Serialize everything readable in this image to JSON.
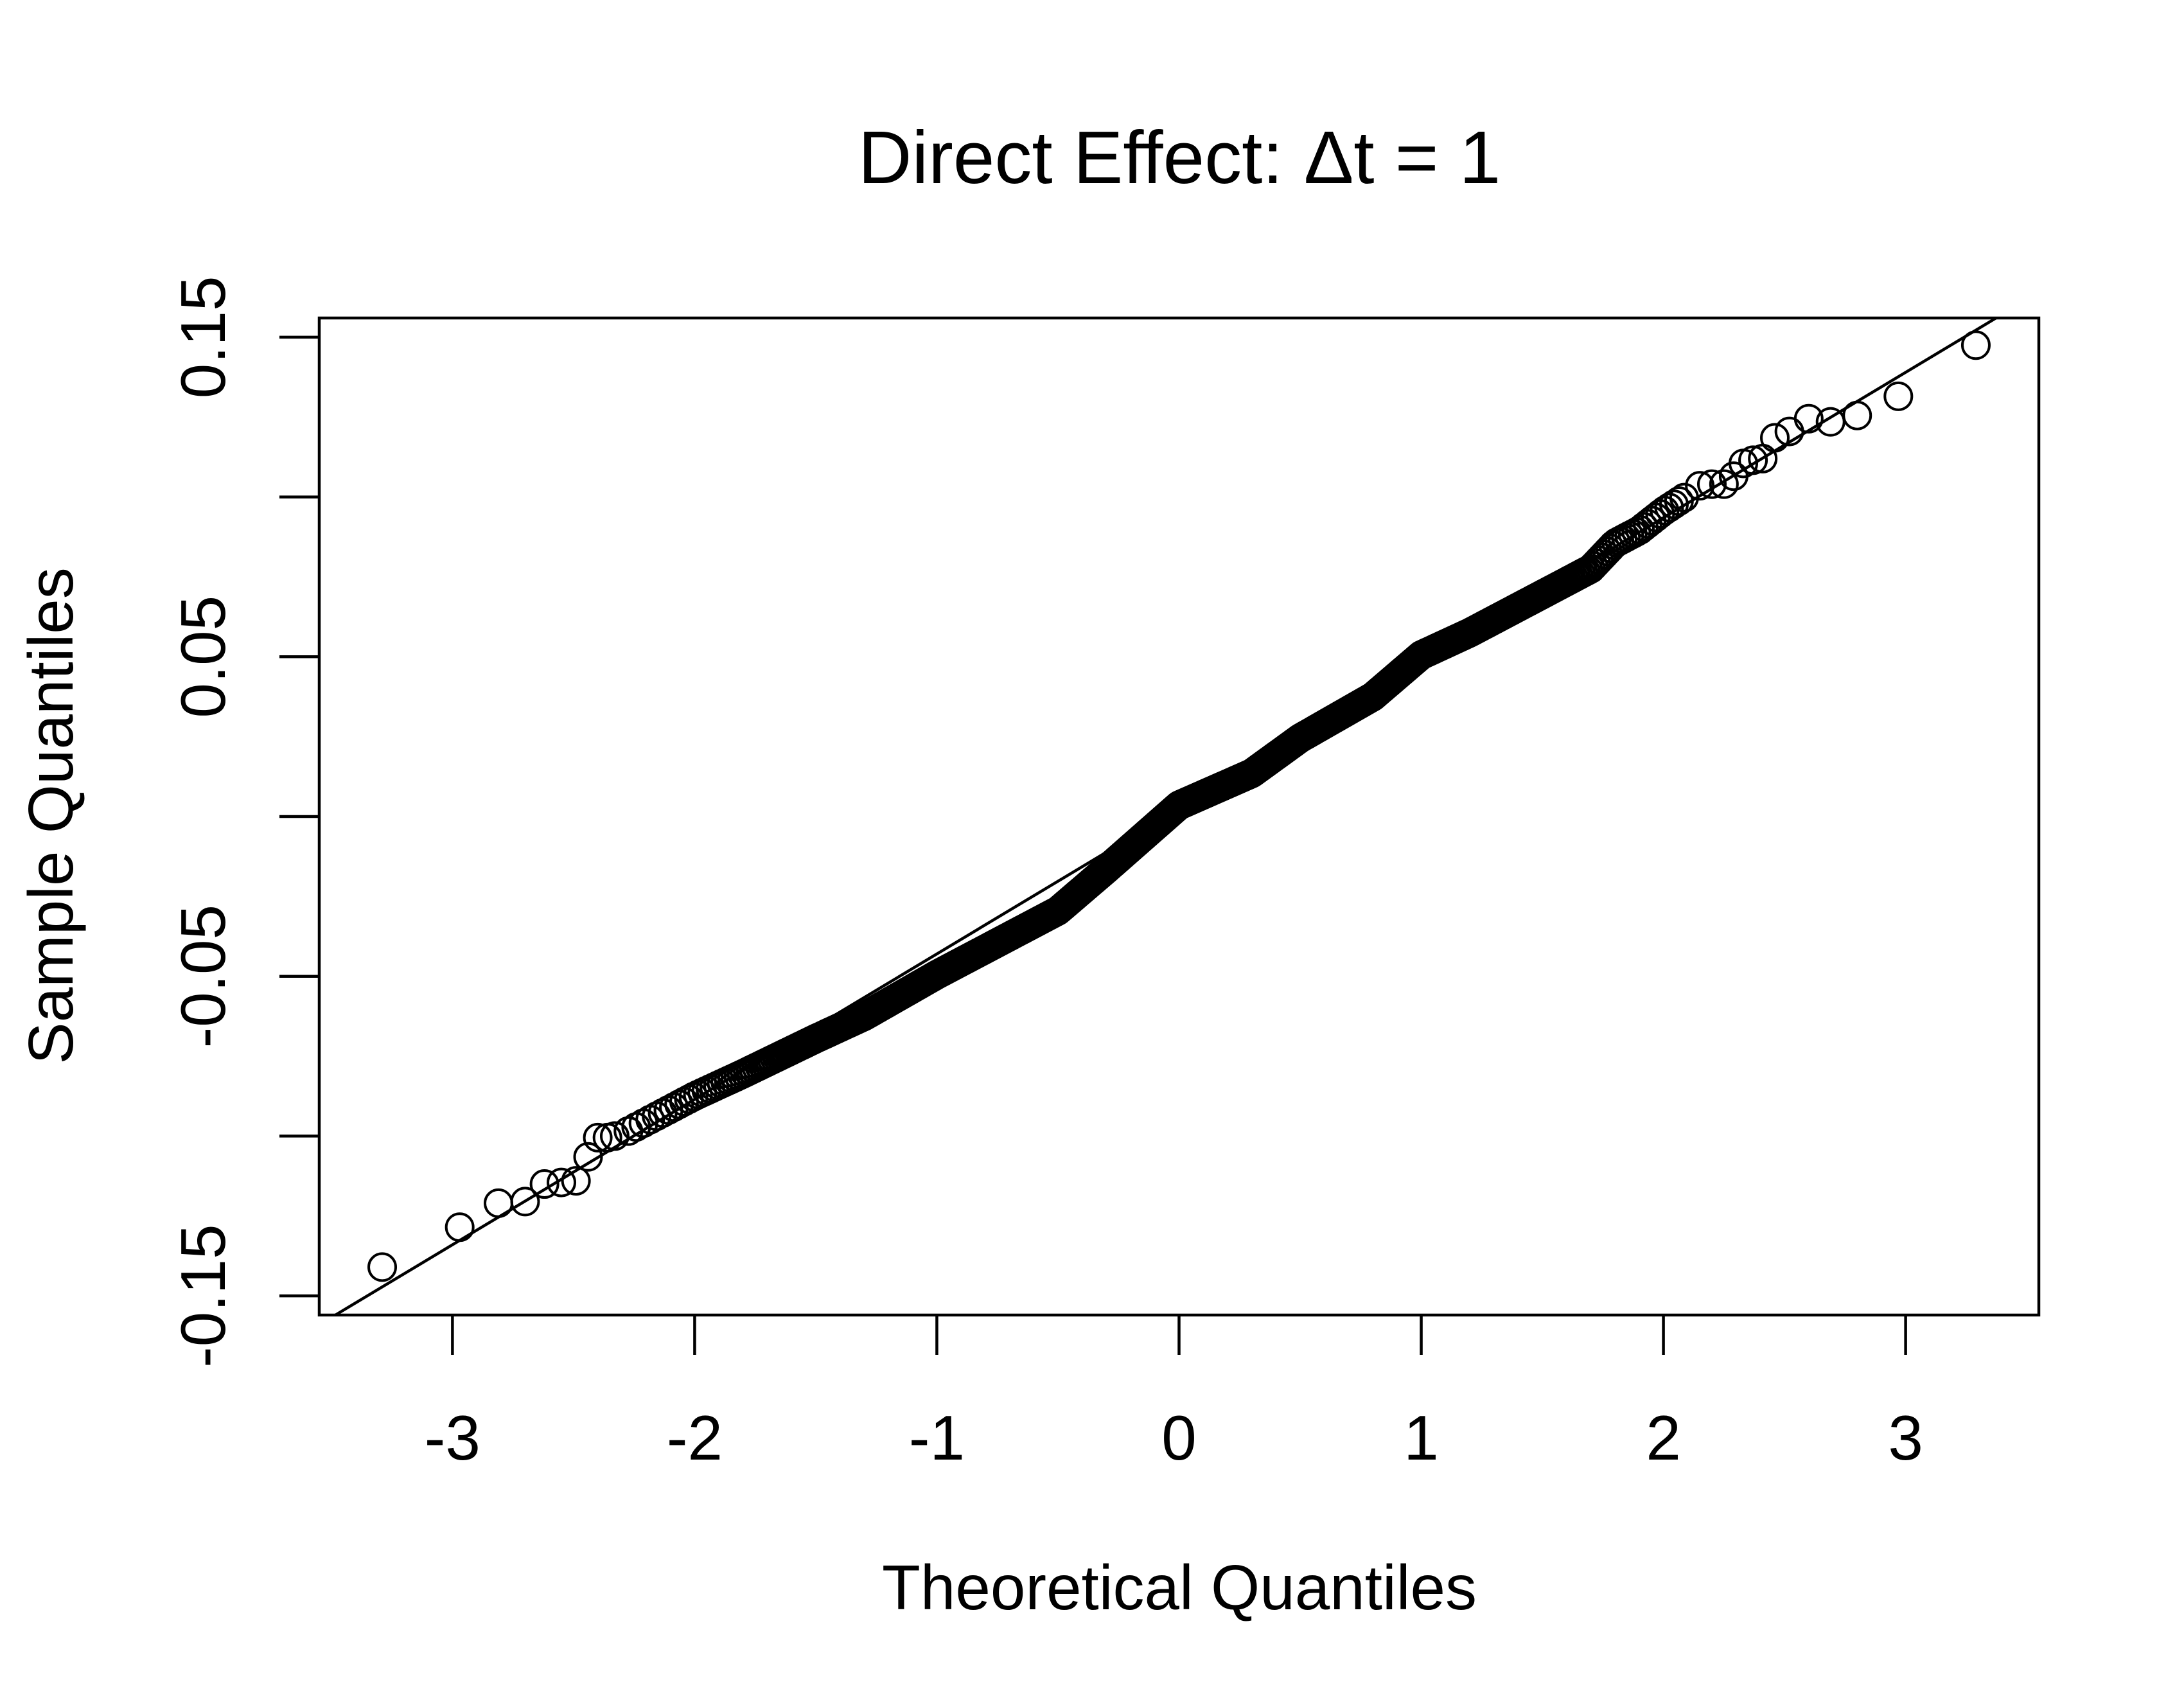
{
  "chart_data": {
    "type": "scatter",
    "subtype": "normal-qq-plot",
    "title": "Direct Effect:  Δt = 1",
    "xlabel": "Theoretical Quantiles",
    "ylabel": "Sample Quantiles",
    "xlim": [
      -3.55,
      3.55
    ],
    "ylim": [
      -0.156,
      0.156
    ],
    "x_ticks": [
      -3,
      -2,
      -1,
      0,
      1,
      2,
      3
    ],
    "x_tick_labels": [
      "-3",
      "-2",
      "-1",
      "0",
      "1",
      "2",
      "3"
    ],
    "y_ticks": [
      -0.15,
      -0.1,
      -0.05,
      0,
      0.05,
      0.1,
      0.15
    ],
    "y_tick_labels": [
      "-0.15",
      "",
      "-0.05",
      "",
      "0.05",
      "",
      "0.15"
    ],
    "grid": false,
    "legend": "none",
    "reference_line": {
      "intercept": 0.0025,
      "slope": 0.0455
    },
    "n_points": 1000,
    "central_curve_knots": {
      "x": [
        -2.3,
        -2.1,
        -2.0,
        -1.8,
        -1.5,
        -1.3,
        -1.0,
        -0.8,
        -0.5,
        -0.3,
        0.0,
        0.3,
        0.5,
        0.8,
        1.0,
        1.2,
        1.5,
        1.7,
        1.8,
        1.9,
        2.0,
        2.1
      ],
      "y": [
        -0.0995,
        -0.0915,
        -0.0875,
        -0.0805,
        -0.0695,
        -0.0625,
        -0.0495,
        -0.0415,
        -0.0295,
        -0.0165,
        0.0035,
        0.0135,
        0.0245,
        0.0375,
        0.0505,
        0.0575,
        0.0695,
        0.0775,
        0.0855,
        0.0895,
        0.0955,
        0.1005
      ]
    },
    "tail_points": [
      {
        "x": -3.29,
        "y": -0.141
      },
      {
        "x": -2.97,
        "y": -0.1285
      },
      {
        "x": -2.81,
        "y": -0.121
      },
      {
        "x": -2.7,
        "y": -0.1205
      },
      {
        "x": -2.62,
        "y": -0.115
      },
      {
        "x": -2.55,
        "y": -0.1145
      },
      {
        "x": -2.49,
        "y": -0.114
      },
      {
        "x": -2.44,
        "y": -0.1065
      },
      {
        "x": -2.4,
        "y": -0.1005
      },
      {
        "x": -2.36,
        "y": -0.1005
      },
      {
        "x": -2.33,
        "y": -0.1
      },
      {
        "x": 2.15,
        "y": 0.1035
      },
      {
        "x": 2.2,
        "y": 0.104
      },
      {
        "x": 2.25,
        "y": 0.104
      },
      {
        "x": 2.29,
        "y": 0.1065
      },
      {
        "x": 2.33,
        "y": 0.1105
      },
      {
        "x": 2.37,
        "y": 0.1115
      },
      {
        "x": 2.41,
        "y": 0.112
      },
      {
        "x": 2.46,
        "y": 0.1185
      },
      {
        "x": 2.52,
        "y": 0.1205
      },
      {
        "x": 2.6,
        "y": 0.1245
      },
      {
        "x": 2.69,
        "y": 0.1235
      },
      {
        "x": 2.8,
        "y": 0.1255
      },
      {
        "x": 2.97,
        "y": 0.1315
      },
      {
        "x": 3.29,
        "y": 0.1475
      }
    ]
  }
}
